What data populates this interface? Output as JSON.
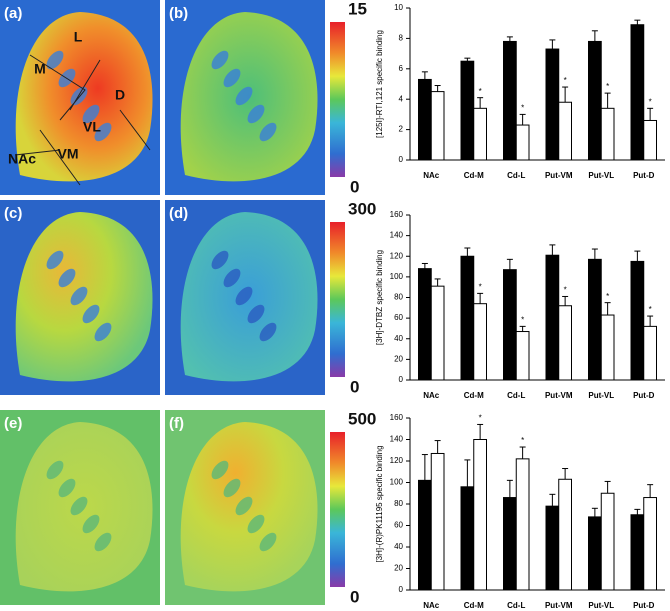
{
  "panels": [
    {
      "label": "(a)",
      "regions": [
        "L",
        "M",
        "D",
        "VL",
        "VM",
        "NAc"
      ]
    },
    {
      "label": "(b)"
    },
    {
      "label": "(c)"
    },
    {
      "label": "(d)"
    },
    {
      "label": "(e)"
    },
    {
      "label": "(f)"
    }
  ],
  "scales": [
    {
      "max": "15",
      "min": "0"
    },
    {
      "max": "300",
      "min": "0"
    },
    {
      "max": "500",
      "min": "0"
    }
  ],
  "chart_data": [
    {
      "type": "bar",
      "y_label": "[125I]-RTI,121 specific binding",
      "categories": [
        "NAc",
        "Cd-M",
        "Cd-L",
        "Put-VM",
        "Put-VL",
        "Put-D"
      ],
      "ylim": [
        0,
        10
      ],
      "yticks": [
        0,
        2,
        4,
        6,
        8,
        10
      ],
      "series": [
        {
          "color": "#000000",
          "values": [
            5.3,
            6.5,
            7.8,
            7.3,
            7.8,
            8.9
          ],
          "errors": [
            0.5,
            0.2,
            0.3,
            0.6,
            0.7,
            0.3
          ]
        },
        {
          "color": "#ffffff",
          "values": [
            4.5,
            3.4,
            2.3,
            3.8,
            3.4,
            2.6
          ],
          "errors": [
            0.4,
            0.7,
            0.7,
            1.0,
            1.0,
            0.8
          ],
          "stars": [
            null,
            "*",
            "*",
            "*",
            "*",
            "*"
          ]
        }
      ]
    },
    {
      "type": "bar",
      "y_label": "[3H]-DTBZ specific binding",
      "categories": [
        "NAc",
        "Cd-M",
        "Cd-L",
        "Put-VM",
        "Put-VL",
        "Put-D"
      ],
      "ylim": [
        0,
        160
      ],
      "yticks": [
        0,
        20,
        40,
        60,
        80,
        100,
        120,
        140,
        160
      ],
      "series": [
        {
          "color": "#000000",
          "values": [
            108,
            120,
            107,
            121,
            117,
            115
          ],
          "errors": [
            5,
            8,
            10,
            10,
            10,
            10
          ]
        },
        {
          "color": "#ffffff",
          "values": [
            91,
            74,
            47,
            72,
            63,
            52
          ],
          "errors": [
            7,
            10,
            5,
            9,
            12,
            10
          ],
          "stars": [
            null,
            "*",
            "*",
            "*",
            "*",
            "*"
          ]
        }
      ]
    },
    {
      "type": "bar",
      "y_label": "[3H]-(R)PK11195 specific binding",
      "categories": [
        "NAc",
        "Cd-M",
        "Cd-L",
        "Put-VM",
        "Put-VL",
        "Put-D"
      ],
      "ylim": [
        0,
        160
      ],
      "yticks": [
        0,
        20,
        40,
        60,
        80,
        100,
        120,
        140,
        160
      ],
      "series": [
        {
          "color": "#000000",
          "values": [
            102,
            96,
            86,
            78,
            68,
            70
          ],
          "errors": [
            24,
            25,
            16,
            11,
            8,
            5
          ]
        },
        {
          "color": "#ffffff",
          "values": [
            127,
            140,
            122,
            103,
            90,
            86
          ],
          "errors": [
            12,
            14,
            11,
            10,
            11,
            12
          ],
          "stars": [
            null,
            "*",
            "*",
            null,
            null,
            null
          ]
        }
      ]
    }
  ]
}
